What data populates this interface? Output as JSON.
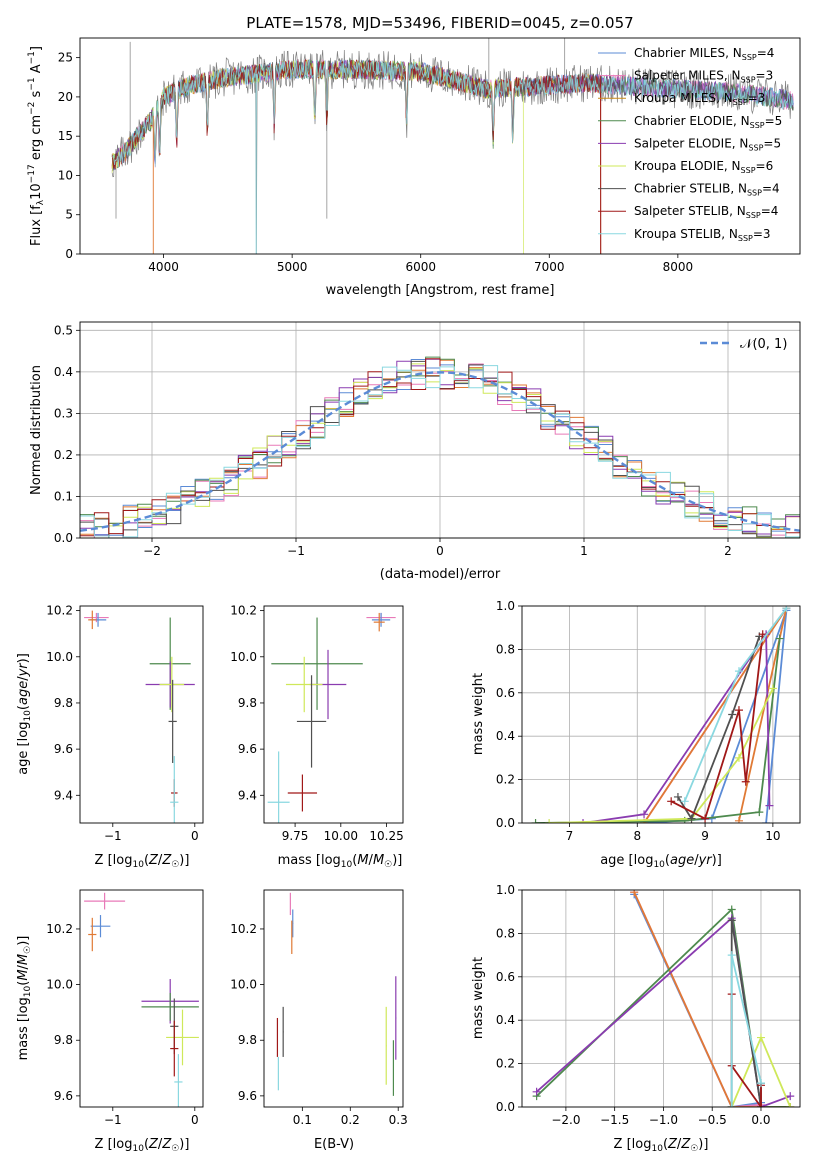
{
  "figure_title": "PLATE=1578, MJD=53496, FIBERID=0045, z=0.057",
  "colors": {
    "C0": "#5b8bd6",
    "C1": "#e07a35",
    "C2": "#7e8fd0",
    "C3": "#4e8a4e",
    "C4": "#8a3cb0",
    "C5": "#cfe85a",
    "C6": "#505050",
    "C7": "#a01818",
    "C8": "#8ad8e0",
    "C9": "#e87ab8"
  },
  "chart_data": [
    {
      "id": "spectrum",
      "type": "line",
      "xlabel": "wavelength [Angstrom, rest frame]",
      "ylabel": "Flux [f_λ 10^-17 erg cm^-2 s^-1 A^-1]",
      "xlim": [
        3350,
        8950
      ],
      "ylim": [
        0,
        27.5
      ],
      "xticks": [
        "4000",
        "5000",
        "6000",
        "7000",
        "8000"
      ],
      "yticks": [
        "0",
        "5",
        "10",
        "15",
        "20",
        "25"
      ],
      "grid": false,
      "legend_position": "top-right",
      "series": [
        {
          "name": "Chabrier MILES, N_SSP=4",
          "color": "#5b8bd6"
        },
        {
          "name": "Salpeter MILES, N_SSP=3",
          "color": "#e87ab8"
        },
        {
          "name": "Kroupa MILES, N_SSP=3",
          "color": "#c98a18"
        },
        {
          "name": "Chabrier ELODIE, N_SSP=5",
          "color": "#4e8a4e"
        },
        {
          "name": "Salpeter ELODIE, N_SSP=5",
          "color": "#8a3cb0"
        },
        {
          "name": "Kroupa ELODIE, N_SSP=6",
          "color": "#cfe85a"
        },
        {
          "name": "Chabrier STELIB, N_SSP=4",
          "color": "#505050"
        },
        {
          "name": "Salpeter STELIB, N_SSP=4",
          "color": "#a01818"
        },
        {
          "name": "Kroupa STELIB, N_SSP=3",
          "color": "#8ad8e0"
        }
      ],
      "data_spectrum_color": "#808080",
      "approx_continuum": {
        "x": [
          3600,
          3700,
          3900,
          4000,
          4200,
          4500,
          5000,
          5500,
          6000,
          6300,
          6500,
          7000,
          7300,
          7500,
          8000,
          8500,
          8900
        ],
        "y": [
          11.5,
          13,
          17,
          20,
          21.5,
          22.5,
          23.5,
          23.5,
          23.2,
          22,
          21,
          21.5,
          21.8,
          21.5,
          21,
          20.5,
          19.5
        ]
      }
    },
    {
      "id": "residuals",
      "type": "line",
      "xlabel": "(data-model)/error",
      "ylabel": "Normed distribution",
      "xlim": [
        -2.5,
        2.5
      ],
      "ylim": [
        0,
        0.52
      ],
      "xticks": [
        "−2",
        "−1",
        "0",
        "1",
        "2"
      ],
      "yticks": [
        "0.0",
        "0.1",
        "0.2",
        "0.3",
        "0.4",
        "0.5"
      ],
      "grid": true,
      "legend": "𝒩(0, 1)",
      "legend_position": "top-right",
      "gaussian": {
        "mean": 0,
        "sigma": 1,
        "color": "#5b8bd6"
      },
      "hist_bin_width": 0.1
    },
    {
      "id": "age_vs_Z",
      "type": "scatter",
      "xlabel": "Z [log10(Z/Z☉)]",
      "ylabel": "age [log10(age/yr)]",
      "xlim": [
        -1.4,
        0.1
      ],
      "ylim": [
        9.28,
        10.22
      ],
      "xticks": [
        "−1",
        "0"
      ],
      "yticks": [
        "9.4",
        "9.6",
        "9.8",
        "10.0",
        "10.2"
      ],
      "points": [
        {
          "x": -1.2,
          "y": 10.17,
          "xerr": 0.15,
          "yerr": 0.02,
          "color": "#e87ab8"
        },
        {
          "x": -1.18,
          "y": 10.16,
          "xerr": 0.1,
          "yerr": 0.03,
          "color": "#5b8bd6"
        },
        {
          "x": -1.25,
          "y": 10.16,
          "xerr": 0.05,
          "yerr": 0.04,
          "color": "#e07a35"
        },
        {
          "x": -0.3,
          "y": 9.97,
          "xerr": 0.25,
          "yerr": 0.2,
          "color": "#4e8a4e"
        },
        {
          "x": -0.3,
          "y": 9.88,
          "xerr": 0.3,
          "yerr": 0.1,
          "color": "#8a3cb0"
        },
        {
          "x": -0.28,
          "y": 9.88,
          "xerr": 0.15,
          "yerr": 0.12,
          "color": "#cfe85a"
        },
        {
          "x": -0.27,
          "y": 9.72,
          "xerr": 0.05,
          "yerr": 0.18,
          "color": "#505050"
        },
        {
          "x": -0.25,
          "y": 9.41,
          "xerr": 0.04,
          "yerr": 0.06,
          "color": "#a01818"
        },
        {
          "x": -0.25,
          "y": 9.37,
          "xerr": 0.05,
          "yerr": 0.2,
          "color": "#8ad8e0"
        }
      ]
    },
    {
      "id": "age_vs_mass",
      "type": "scatter",
      "xlabel": "mass [log10(M/M☉)]",
      "ylabel": "",
      "xlim": [
        9.58,
        10.34
      ],
      "ylim": [
        9.28,
        10.22
      ],
      "xticks": [
        "9.75",
        "10.00",
        "10.25"
      ],
      "yticks": [
        "9.4",
        "9.6",
        "9.8",
        "10.0",
        "10.2"
      ],
      "points": [
        {
          "x": 10.22,
          "y": 10.17,
          "xerr": 0.08,
          "yerr": 0.02,
          "color": "#e87ab8"
        },
        {
          "x": 10.22,
          "y": 10.16,
          "xerr": 0.05,
          "yerr": 0.03,
          "color": "#5b8bd6"
        },
        {
          "x": 10.21,
          "y": 10.15,
          "xerr": 0.03,
          "yerr": 0.04,
          "color": "#e07a35"
        },
        {
          "x": 9.87,
          "y": 9.97,
          "xerr": 0.25,
          "yerr": 0.2,
          "color": "#4e8a4e"
        },
        {
          "x": 9.93,
          "y": 9.88,
          "xerr": 0.1,
          "yerr": 0.15,
          "color": "#8a3cb0"
        },
        {
          "x": 9.8,
          "y": 9.88,
          "xerr": 0.1,
          "yerr": 0.12,
          "color": "#cfe85a"
        },
        {
          "x": 9.84,
          "y": 9.72,
          "xerr": 0.08,
          "yerr": 0.2,
          "color": "#505050"
        },
        {
          "x": 9.79,
          "y": 9.41,
          "xerr": 0.08,
          "yerr": 0.08,
          "color": "#a01818"
        },
        {
          "x": 9.66,
          "y": 9.37,
          "xerr": 0.06,
          "yerr": 0.22,
          "color": "#8ad8e0"
        }
      ]
    },
    {
      "id": "weight_vs_age",
      "type": "line",
      "xlabel": "age [log10(age/yr)]",
      "ylabel": "mass weight",
      "xlim": [
        6.3,
        10.4
      ],
      "ylim": [
        0,
        1.0
      ],
      "xticks": [
        "7",
        "8",
        "9",
        "10"
      ],
      "yticks": [
        "0.0",
        "0.2",
        "0.4",
        "0.6",
        "0.8",
        "1.0"
      ],
      "grid": true,
      "series": [
        {
          "color": "#5b8bd6",
          "x": [
            8.1,
            9.1,
            10.2,
            9.9
          ],
          "y": [
            0.0,
            0.02,
            0.98,
            0.0
          ]
        },
        {
          "color": "#e87ab8",
          "x": [
            8.1,
            10.2
          ],
          "y": [
            0.0,
            0.99
          ]
        },
        {
          "color": "#e07a35",
          "x": [
            8.1,
            10.2,
            9.5
          ],
          "y": [
            0.0,
            0.99,
            0.01
          ]
        },
        {
          "color": "#4e8a4e",
          "x": [
            6.5,
            8.7,
            9.8,
            10.1
          ],
          "y": [
            0.0,
            0.01,
            0.05,
            0.85
          ]
        },
        {
          "color": "#8a3cb0",
          "x": [
            7.2,
            8.1,
            9.9,
            9.95
          ],
          "y": [
            0.0,
            0.04,
            0.87,
            0.08
          ]
        },
        {
          "color": "#cfe85a",
          "x": [
            6.7,
            8.8,
            9.5,
            10.0
          ],
          "y": [
            0.0,
            0.02,
            0.3,
            0.62
          ]
        },
        {
          "color": "#505050",
          "x": [
            8.6,
            8.8,
            9.4,
            9.8
          ],
          "y": [
            0.12,
            0.02,
            0.5,
            0.86
          ]
        },
        {
          "color": "#a01818",
          "x": [
            8.5,
            9.0,
            9.5,
            9.6,
            9.85
          ],
          "y": [
            0.1,
            0.02,
            0.52,
            0.19,
            0.87
          ]
        },
        {
          "color": "#8ad8e0",
          "x": [
            8.7,
            9.5,
            10.2
          ],
          "y": [
            0.1,
            0.7,
            0.99
          ]
        }
      ]
    },
    {
      "id": "mass_vs_Z",
      "type": "scatter",
      "xlabel": "Z [log10(Z/Z☉)]",
      "ylabel": "mass [log10(M/M☉)]",
      "xlim": [
        -1.4,
        0.1
      ],
      "ylim": [
        9.56,
        10.34
      ],
      "xticks": [
        "−1",
        "0"
      ],
      "yticks": [
        "9.6",
        "9.8",
        "10.0",
        "10.2"
      ],
      "points": [
        {
          "x": -1.1,
          "y": 10.3,
          "xerr": 0.25,
          "yerr": 0.03,
          "color": "#e87ab8"
        },
        {
          "x": -1.15,
          "y": 10.21,
          "xerr": 0.12,
          "yerr": 0.04,
          "color": "#5b8bd6"
        },
        {
          "x": -1.25,
          "y": 10.18,
          "xerr": 0.05,
          "yerr": 0.06,
          "color": "#e07a35"
        },
        {
          "x": -0.3,
          "y": 9.94,
          "xerr": 0.35,
          "yerr": 0.08,
          "color": "#8a3cb0"
        },
        {
          "x": -0.3,
          "y": 9.92,
          "xerr": 0.35,
          "yerr": 0.05,
          "color": "#4e8a4e"
        },
        {
          "x": -0.15,
          "y": 9.81,
          "xerr": 0.2,
          "yerr": 0.1,
          "color": "#cfe85a"
        },
        {
          "x": -0.25,
          "y": 9.85,
          "xerr": 0.05,
          "yerr": 0.1,
          "color": "#505050"
        },
        {
          "x": -0.25,
          "y": 9.77,
          "xerr": 0.05,
          "yerr": 0.1,
          "color": "#a01818"
        },
        {
          "x": -0.2,
          "y": 9.65,
          "xerr": 0.05,
          "yerr": 0.1,
          "color": "#8ad8e0"
        }
      ]
    },
    {
      "id": "mass_vs_EBV",
      "type": "scatter",
      "xlabel": "E(B-V)",
      "ylabel": "",
      "xlim": [
        0.02,
        0.31
      ],
      "ylim": [
        9.56,
        10.34
      ],
      "xticks": [
        "0.1",
        "0.2",
        "0.3"
      ],
      "yticks": [
        "9.6",
        "9.8",
        "10.0",
        "10.2"
      ],
      "points": [
        {
          "x": 0.075,
          "y": 10.29,
          "xerr": 0.0,
          "yerr": 0.04,
          "color": "#e87ab8"
        },
        {
          "x": 0.08,
          "y": 10.22,
          "xerr": 0.0,
          "yerr": 0.05,
          "color": "#5b8bd6"
        },
        {
          "x": 0.078,
          "y": 10.17,
          "xerr": 0.0,
          "yerr": 0.06,
          "color": "#e07a35"
        },
        {
          "x": 0.295,
          "y": 9.88,
          "xerr": 0.0,
          "yerr": 0.15,
          "color": "#8a3cb0"
        },
        {
          "x": 0.275,
          "y": 9.78,
          "xerr": 0.0,
          "yerr": 0.14,
          "color": "#cfe85a"
        },
        {
          "x": 0.06,
          "y": 9.83,
          "xerr": 0.0,
          "yerr": 0.09,
          "color": "#505050"
        },
        {
          "x": 0.048,
          "y": 9.81,
          "xerr": 0.0,
          "yerr": 0.07,
          "color": "#a01818"
        },
        {
          "x": 0.05,
          "y": 9.68,
          "xerr": 0.0,
          "yerr": 0.06,
          "color": "#8ad8e0"
        },
        {
          "x": 0.29,
          "y": 9.7,
          "xerr": 0.0,
          "yerr": 0.1,
          "color": "#4e8a4e"
        }
      ]
    },
    {
      "id": "weight_vs_Z",
      "type": "line",
      "xlabel": "Z [log10(Z/Z☉)]",
      "ylabel": "mass weight",
      "xlim": [
        -2.45,
        0.4
      ],
      "ylim": [
        0,
        1.0
      ],
      "xticks": [
        "−2.0",
        "−1.5",
        "−1.0",
        "−0.5",
        "0.0"
      ],
      "yticks": [
        "0.0",
        "0.2",
        "0.4",
        "0.6",
        "0.8",
        "1.0"
      ],
      "grid": true,
      "series": [
        {
          "color": "#5b8bd6",
          "x": [
            -1.3,
            -0.3,
            0.0
          ],
          "y": [
            0.98,
            0.0,
            0.02
          ]
        },
        {
          "color": "#e87ab8",
          "x": [
            -1.3,
            -0.3,
            0.0
          ],
          "y": [
            0.99,
            0.0,
            0.01
          ]
        },
        {
          "color": "#e07a35",
          "x": [
            -1.3,
            -0.3,
            0.3
          ],
          "y": [
            0.99,
            0.0,
            0.0
          ]
        },
        {
          "color": "#4e8a4e",
          "x": [
            -2.3,
            -0.3,
            0.0,
            0.3
          ],
          "y": [
            0.05,
            0.91,
            0.0,
            0.0
          ]
        },
        {
          "color": "#8a3cb0",
          "x": [
            -2.3,
            -0.3,
            0.0,
            0.3
          ],
          "y": [
            0.07,
            0.87,
            0.0,
            0.05
          ]
        },
        {
          "color": "#cfe85a",
          "x": [
            -0.3,
            0.0,
            0.3
          ],
          "y": [
            0.0,
            0.32,
            0.0
          ]
        },
        {
          "color": "#505050",
          "x": [
            -0.3,
            -0.3,
            0.0,
            0.0
          ],
          "y": [
            0.0,
            0.86,
            0.0,
            0.11
          ]
        },
        {
          "color": "#a01818",
          "x": [
            -0.3,
            -0.3,
            0.0,
            0.0
          ],
          "y": [
            0.52,
            0.19,
            0.0,
            0.1
          ]
        },
        {
          "color": "#8ad8e0",
          "x": [
            -0.3,
            -0.3,
            0.0
          ],
          "y": [
            0.0,
            0.7,
            0.11
          ]
        }
      ]
    }
  ]
}
